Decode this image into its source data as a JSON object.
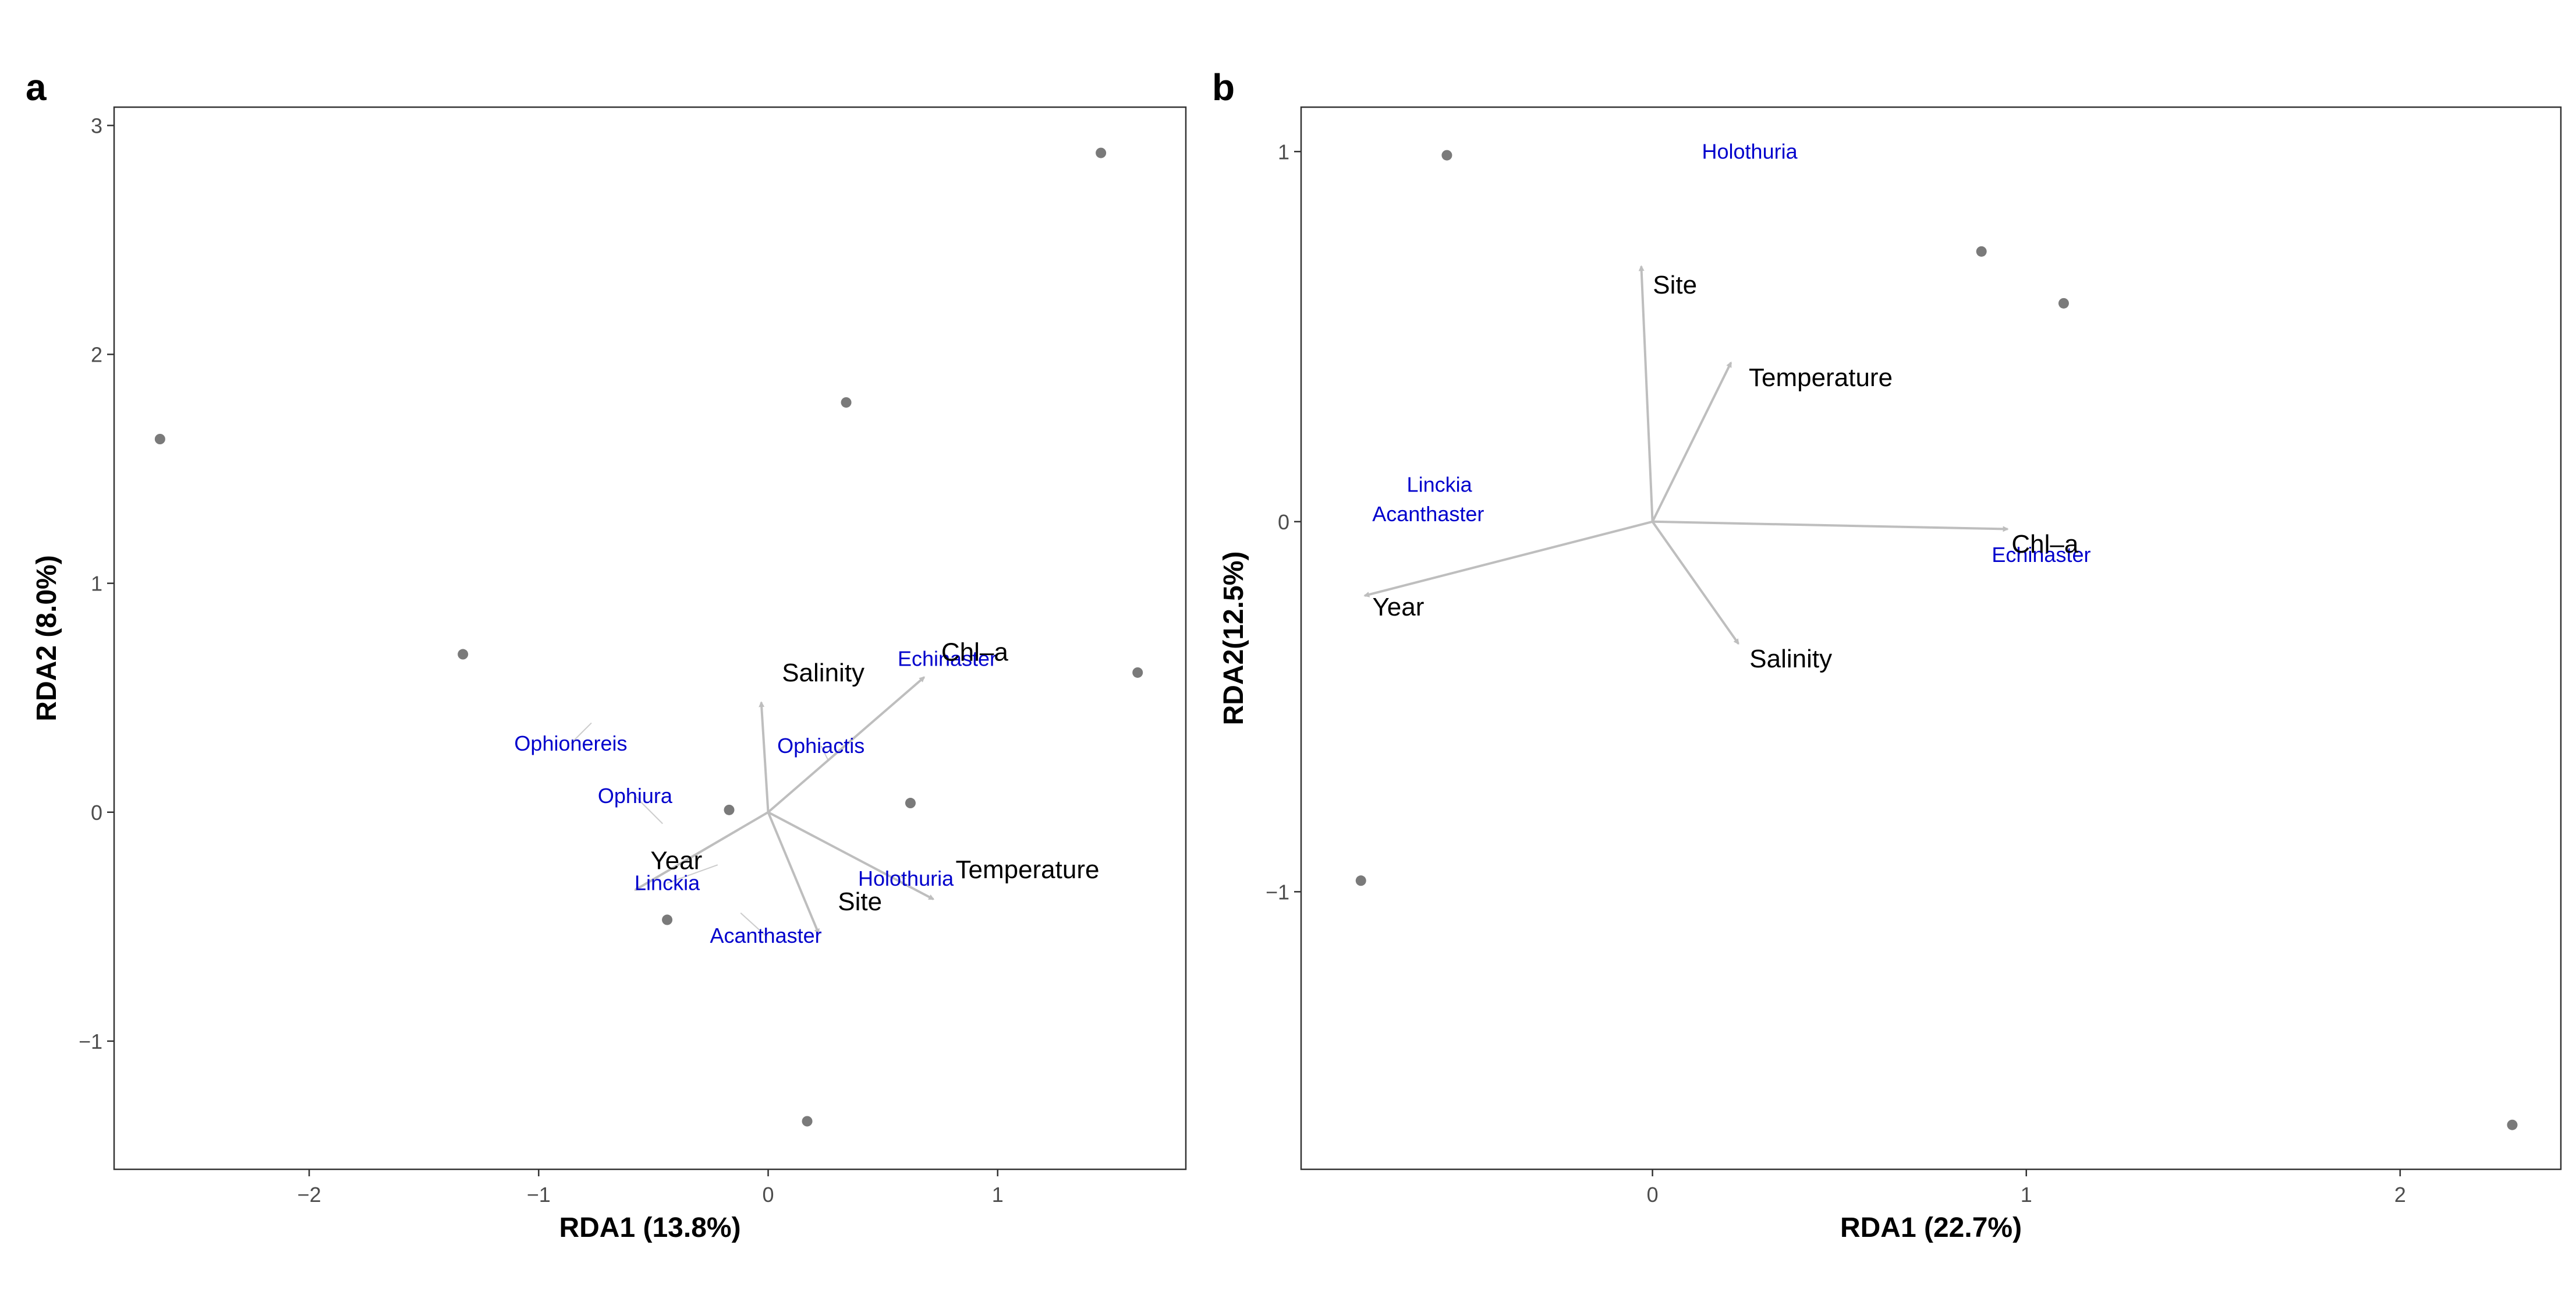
{
  "palette": {
    "point": "#7a7a7a",
    "arrow": "#bebebe",
    "leader": "#cccccc",
    "species": "#0000cc",
    "variable": "#000000",
    "frame": "#333333",
    "tick_text": "#4d4d4d"
  },
  "chart_data": [
    {
      "type": "scatter",
      "panel": "a",
      "title": "",
      "xlabel": "RDA1 (13.8%)",
      "ylabel": "RDA2 (8.0%)",
      "xlim": [
        -2.85,
        1.82
      ],
      "ylim": [
        -1.56,
        3.08
      ],
      "xticks": [
        {
          "v": -2,
          "label": "−2"
        },
        {
          "v": -1,
          "label": "−1"
        },
        {
          "v": 0,
          "label": "0"
        },
        {
          "v": 1,
          "label": "1"
        }
      ],
      "yticks": [
        {
          "v": -1,
          "label": "−1"
        },
        {
          "v": 0,
          "label": "0"
        },
        {
          "v": 1,
          "label": "1"
        },
        {
          "v": 2,
          "label": "2"
        },
        {
          "v": 3,
          "label": "3"
        }
      ],
      "grid": false,
      "sites": [
        {
          "x": -2.65,
          "y": 1.63
        },
        {
          "x": -1.33,
          "y": 0.69
        },
        {
          "x": -0.17,
          "y": 0.01
        },
        {
          "x": -0.44,
          "y": -0.47
        },
        {
          "x": 0.17,
          "y": -1.35
        },
        {
          "x": 0.34,
          "y": 1.79
        },
        {
          "x": 0.62,
          "y": 0.04
        },
        {
          "x": 1.45,
          "y": 2.88
        },
        {
          "x": 1.61,
          "y": 0.61
        }
      ],
      "arrows": [
        {
          "label": "Salinity",
          "x": -0.03,
          "y": 0.48,
          "lx": 0.24,
          "ly": 0.61
        },
        {
          "label": "Chl–a",
          "x": 0.68,
          "y": 0.59,
          "lx": 0.9,
          "ly": 0.7
        },
        {
          "label": "Year",
          "x": -0.58,
          "y": -0.34,
          "lx": -0.4,
          "ly": -0.21
        },
        {
          "label": "Temperature",
          "x": 0.72,
          "y": -0.38,
          "lx": 1.13,
          "ly": -0.25
        },
        {
          "label": "Site",
          "x": 0.22,
          "y": -0.53,
          "lx": 0.4,
          "ly": -0.39
        }
      ],
      "species": [
        {
          "label": "Echinaster",
          "x": 0.82,
          "y": 0.67,
          "lx": 0.78,
          "ly": 0.67
        },
        {
          "label": "Ophionereis",
          "x": -0.77,
          "y": 0.39,
          "lx": -0.86,
          "ly": 0.3
        },
        {
          "label": "Ophiactis",
          "x": 0.26,
          "y": 0.23,
          "lx": 0.23,
          "ly": 0.29
        },
        {
          "label": "Ophiura",
          "x": -0.46,
          "y": -0.05,
          "lx": -0.58,
          "ly": 0.07
        },
        {
          "label": "Linckia",
          "x": -0.22,
          "y": -0.23,
          "lx": -0.44,
          "ly": -0.31
        },
        {
          "label": "Holothuria",
          "x": 0.55,
          "y": -0.27,
          "lx": 0.6,
          "ly": -0.29
        },
        {
          "label": "Acanthaster",
          "x": -0.12,
          "y": -0.44,
          "lx": -0.01,
          "ly": -0.54
        }
      ]
    },
    {
      "type": "scatter",
      "panel": "b",
      "title": "",
      "xlabel": "RDA1 (22.7%)",
      "ylabel": "RDA2(12.5%)",
      "xlim": [
        -0.94,
        2.43
      ],
      "ylim": [
        -1.75,
        1.12
      ],
      "xticks": [
        {
          "v": 0,
          "label": "0"
        },
        {
          "v": 1,
          "label": "1"
        },
        {
          "v": 2,
          "label": "2"
        }
      ],
      "yticks": [
        {
          "v": -1,
          "label": "−1"
        },
        {
          "v": 0,
          "label": "0"
        },
        {
          "v": 1,
          "label": "1"
        }
      ],
      "grid": false,
      "sites": [
        {
          "x": -0.55,
          "y": 0.99
        },
        {
          "x": 0.88,
          "y": 0.73
        },
        {
          "x": 1.1,
          "y": 0.59
        },
        {
          "x": -0.78,
          "y": -0.97
        },
        {
          "x": 2.3,
          "y": -1.63
        }
      ],
      "arrows": [
        {
          "label": "Site",
          "x": -0.03,
          "y": 0.69,
          "lx": 0.06,
          "ly": 0.64
        },
        {
          "label": "Temperature",
          "x": 0.21,
          "y": 0.43,
          "lx": 0.45,
          "ly": 0.39
        },
        {
          "label": "Chl–a",
          "x": 0.95,
          "y": -0.02,
          "lx": 1.05,
          "ly": -0.06
        },
        {
          "label": "Year",
          "x": -0.77,
          "y": -0.2,
          "lx": -0.68,
          "ly": -0.23
        },
        {
          "label": "Salinity",
          "x": 0.23,
          "y": -0.33,
          "lx": 0.37,
          "ly": -0.37
        }
      ],
      "species": [
        {
          "label": "Holothuria",
          "x": 0.26,
          "y": 1.0,
          "lx": 0.26,
          "ly": 1.0
        },
        {
          "label": "Linckia",
          "x": -0.57,
          "y": 0.1,
          "lx": -0.57,
          "ly": 0.1
        },
        {
          "label": "Acanthaster",
          "x": -0.6,
          "y": 0.02,
          "lx": -0.6,
          "ly": 0.02
        },
        {
          "label": "Echinaster",
          "x": 1.04,
          "y": -0.09,
          "lx": 1.04,
          "ly": -0.09
        }
      ]
    }
  ]
}
